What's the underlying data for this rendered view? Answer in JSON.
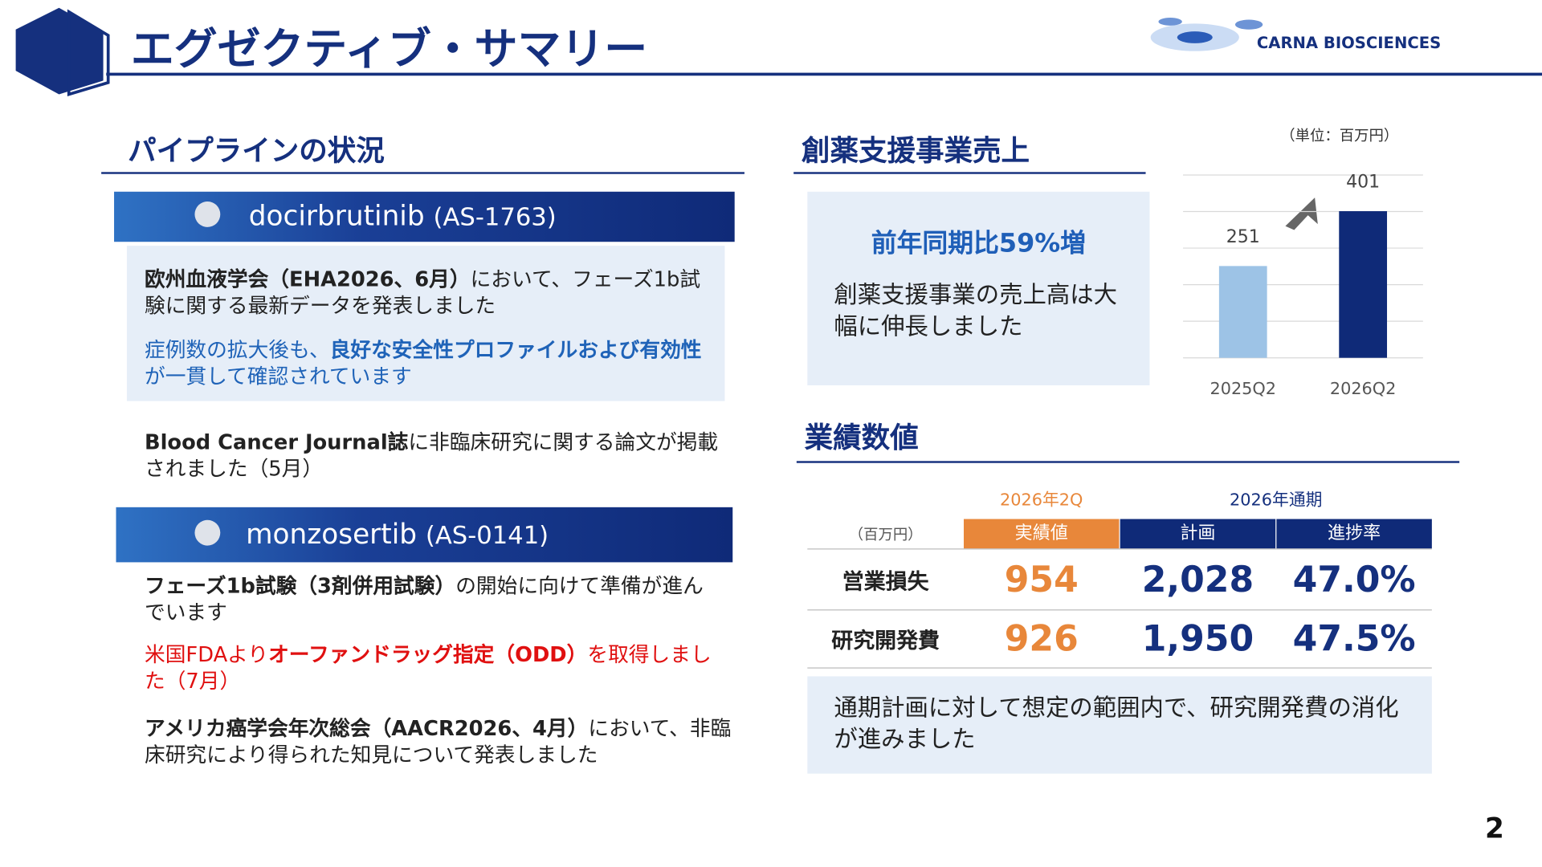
{
  "header": {
    "title": "エグゼクティブ・サマリー",
    "logo": "CARNA BIOSCIENCES",
    "page_number": "2"
  },
  "pipeline": {
    "heading": "パイプラインの状況",
    "drugs": [
      {
        "name": "docirbrutinib",
        "code": "(AS-1763)",
        "paragraphs": [
          [
            "欧州血液学会（EHA2026、6月）",
            "において、フェーズ1b試験に関する最新データを発表しました"
          ],
          [
            "症例数の拡大後も、",
            "良好な安全性プロファイルおよび有効性",
            "が一貫して確認されています"
          ],
          [
            "Blood Cancer Journal誌",
            "に非臨床研究に関する論文が掲載されました（5月）"
          ]
        ]
      },
      {
        "name": "monzosertib",
        "code": "(AS-0141)",
        "paragraphs": [
          [
            "フェーズ1b試験（3剤併用試験）",
            "の開始に向けて準備が進んでいます"
          ],
          [
            "米国FDAより",
            "オーファンドラッグ指定（ODD）",
            "を取得しました（7月）"
          ],
          [
            "アメリカ癌学会年次総会（AACR2026、4月）",
            "において、非臨床研究により得られた知見について発表しました"
          ]
        ]
      }
    ]
  },
  "sales": {
    "heading": "創薬支援事業売上",
    "headline": "前年同期比59%増",
    "body": "創薬支援事業の売上高は大幅に伸長しました"
  },
  "chart_data": {
    "type": "bar",
    "unit": "（単位：百万円）",
    "categories": [
      "2025Q2",
      "2026Q2"
    ],
    "values": [
      251,
      401
    ],
    "colors": [
      "#9dc3e6",
      "#0f2a78"
    ],
    "ylim": [
      0,
      500
    ],
    "yticks": [
      0,
      100,
      200,
      300,
      400,
      500
    ],
    "grid": true
  },
  "performance": {
    "heading": "業績数値",
    "groups": [
      "2026年2Q",
      "2026年通期"
    ],
    "unit": "（百万円）",
    "columns": [
      "実績値",
      "計画",
      "進捗率"
    ],
    "rows": [
      [
        "営業損失",
        "954",
        "2,028",
        "47.0%"
      ],
      [
        "研究開発費",
        "926",
        "1,950",
        "47.5%"
      ]
    ],
    "note": "通期計画に対して想定の範囲内で、研究開発費の消化が進みました"
  }
}
